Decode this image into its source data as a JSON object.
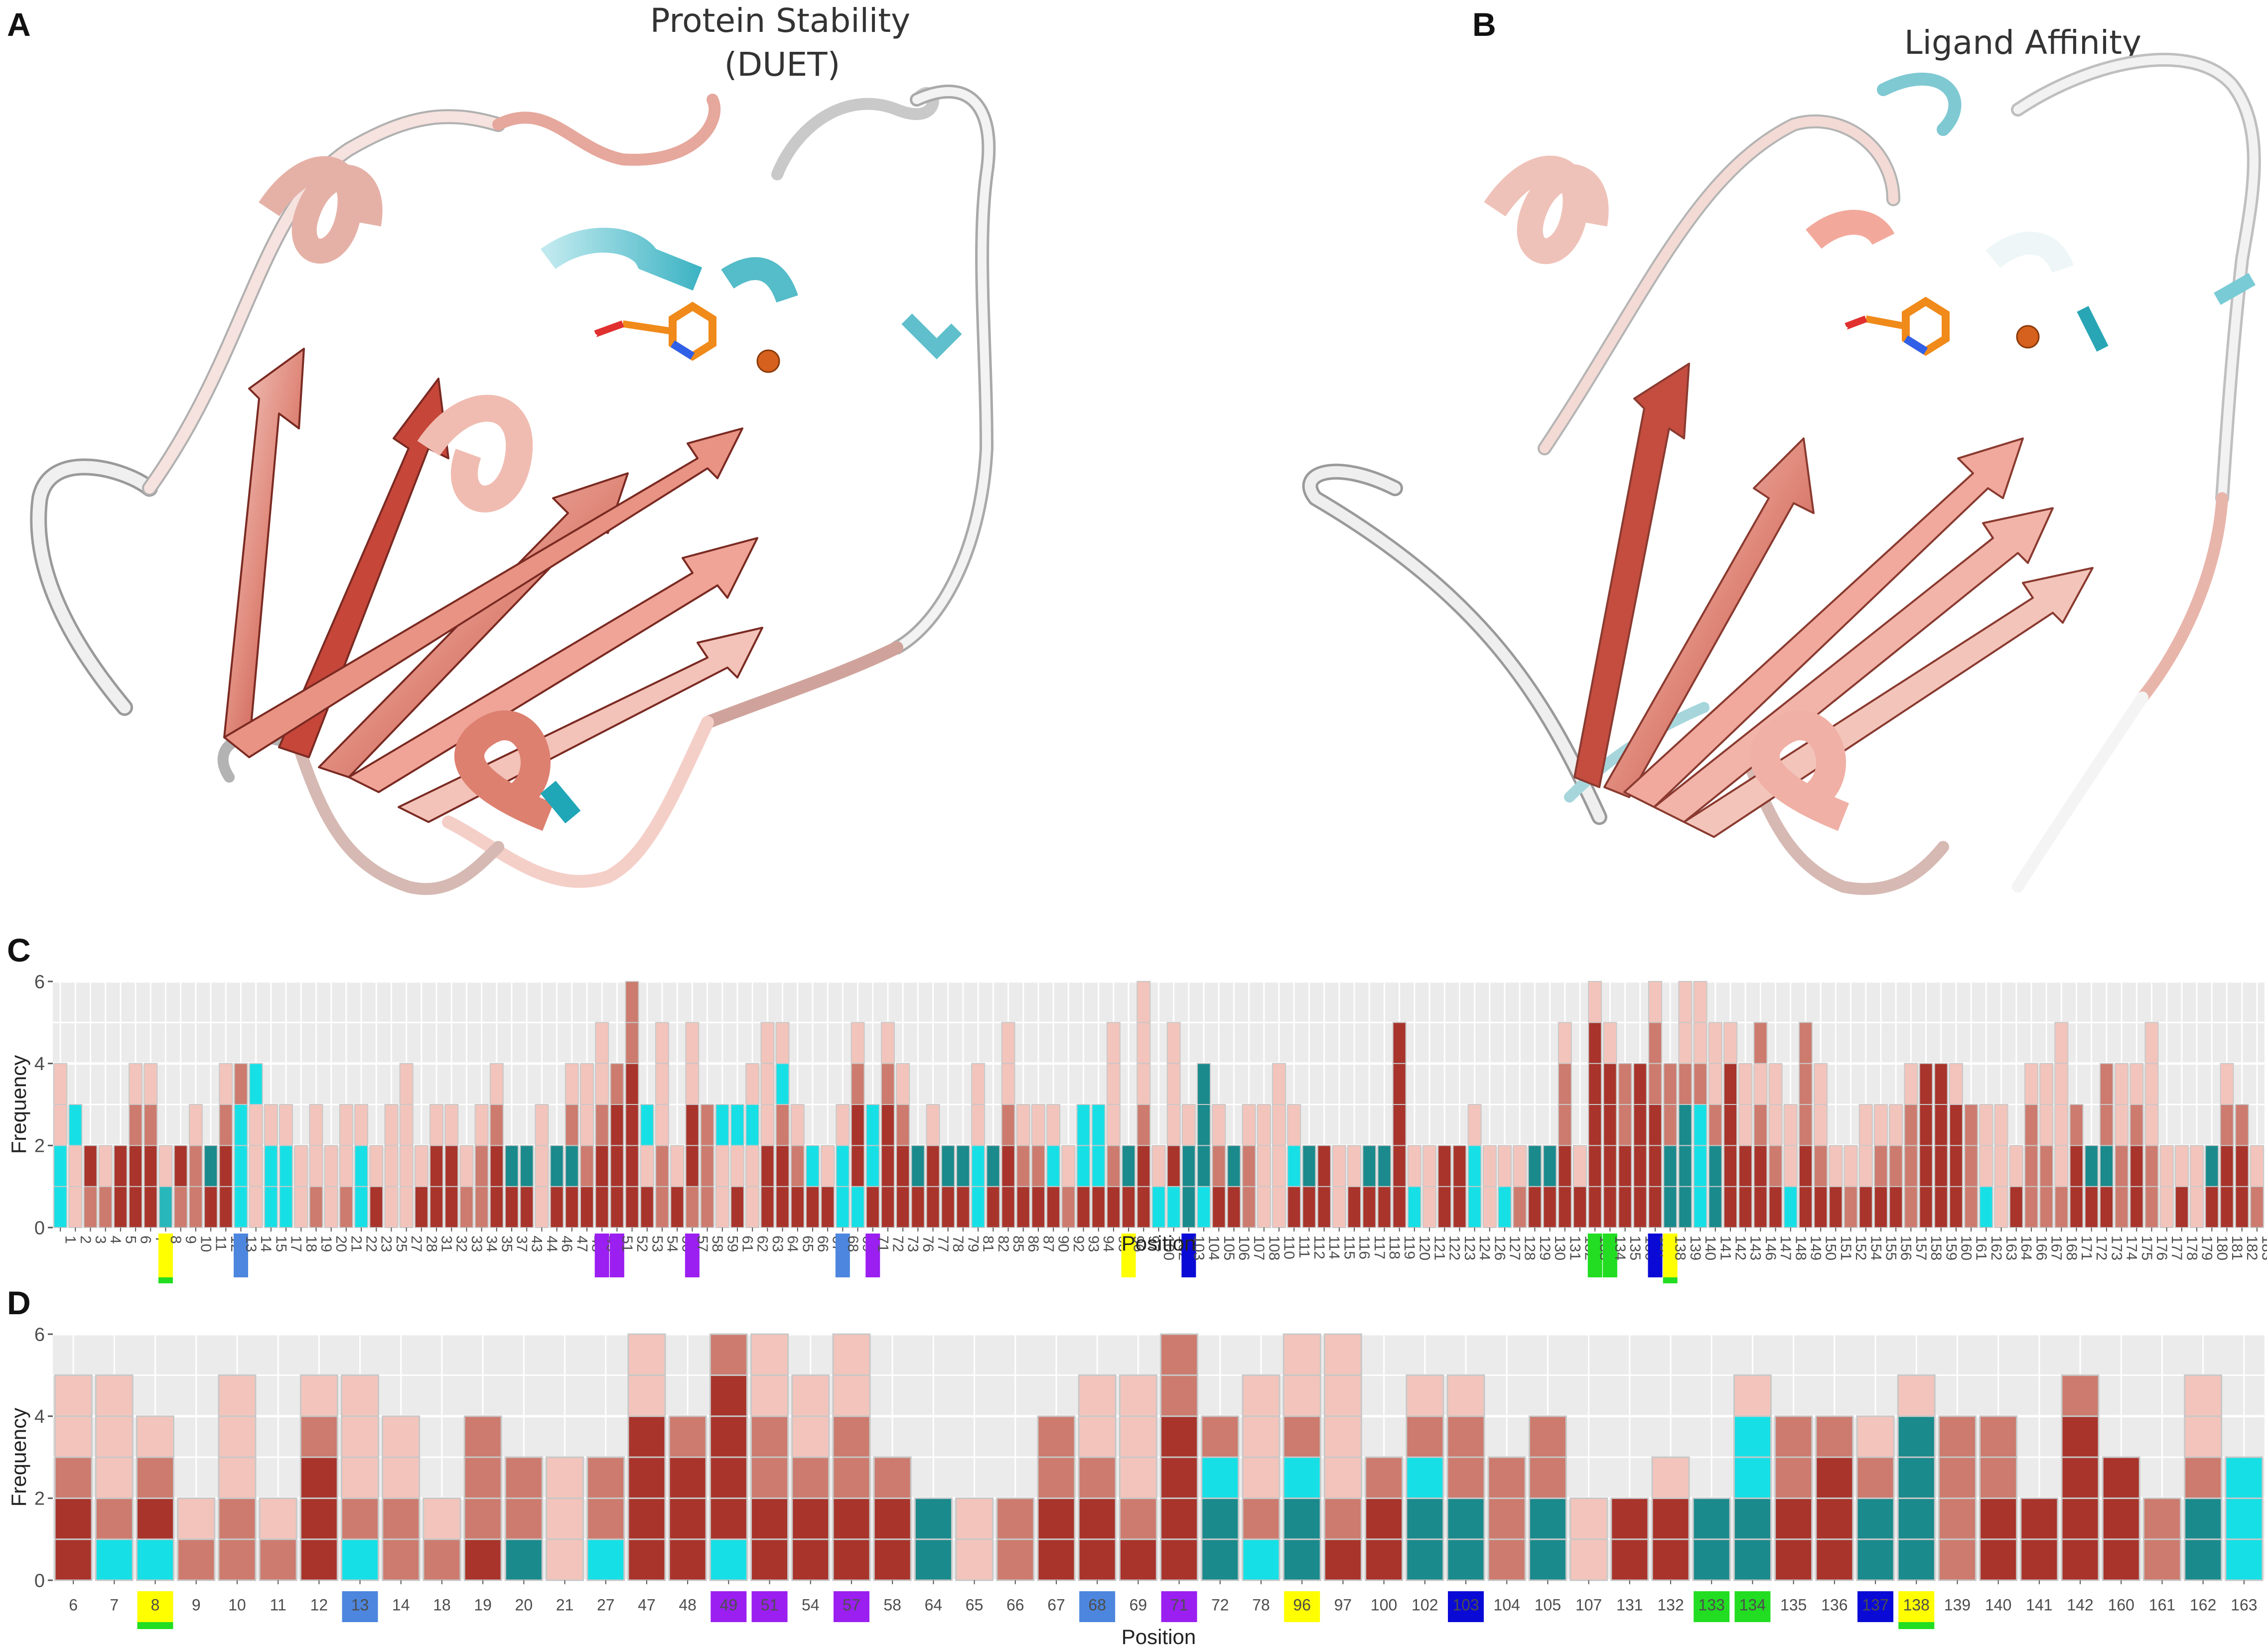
{
  "panel_labels": {
    "a": "A",
    "b": "B",
    "c": "C",
    "d": "D"
  },
  "titles": {
    "a_line1": "Protein Stability",
    "a_line2": "(DUET)",
    "b": "Ligand Affinity"
  },
  "colors": {
    "dark_red": "#a8342b",
    "mid_red": "#cc7b6e",
    "light_red": "#f3c4bb",
    "dark_teal": "#1a8a8c",
    "teal": "#28b7bb",
    "cyan": "#16e0e5",
    "panel_bg": "#ebebeb",
    "grid": "#ffffff",
    "hl_yellow": "#ffff00",
    "hl_blue": "#4d86de",
    "hl_purple": "#9b1ff0",
    "hl_navy": "#0a0ad6",
    "hl_green": "#22dd22"
  },
  "chart_data": [
    {
      "type": "bar",
      "panel": "C",
      "stacked": true,
      "xlabel": "Position",
      "ylabel": "Frequency",
      "ylim": [
        0,
        6
      ],
      "yticks": [
        0,
        2,
        4,
        6
      ],
      "grid": true,
      "categories": [
        "1",
        "2",
        "3",
        "4",
        "5",
        "6",
        "7",
        "8",
        "9",
        "10",
        "11",
        "12",
        "13",
        "14",
        "15",
        "17",
        "18",
        "19",
        "20",
        "21",
        "22",
        "23",
        "25",
        "27",
        "28",
        "31",
        "32",
        "33",
        "34",
        "35",
        "37",
        "43",
        "44",
        "46",
        "47",
        "48",
        "49",
        "51",
        "52",
        "53",
        "54",
        "56",
        "57",
        "58",
        "59",
        "61",
        "62",
        "63",
        "64",
        "65",
        "66",
        "67",
        "68",
        "69",
        "71",
        "72",
        "73",
        "76",
        "77",
        "78",
        "79",
        "81",
        "82",
        "85",
        "86",
        "87",
        "90",
        "92",
        "93",
        "94",
        "95",
        "96",
        "97",
        "100",
        "102",
        "103",
        "104",
        "105",
        "106",
        "107",
        "108",
        "110",
        "111",
        "112",
        "114",
        "115",
        "116",
        "117",
        "118",
        "119",
        "120",
        "121",
        "122",
        "123",
        "124",
        "126",
        "127",
        "128",
        "129",
        "130",
        "131",
        "132",
        "133",
        "134",
        "135",
        "136",
        "137",
        "138",
        "139",
        "140",
        "141",
        "142",
        "143",
        "146",
        "147",
        "148",
        "149",
        "150",
        "151",
        "152",
        "154",
        "155",
        "156",
        "157",
        "158",
        "159",
        "160",
        "161",
        "162",
        "163",
        "164",
        "166",
        "167",
        "168",
        "171",
        "172",
        "173",
        "174",
        "175",
        "176",
        "177",
        "178",
        "179",
        "180",
        "181",
        "182",
        "183"
      ],
      "stack_codes": [
        "CCLL",
        "LLC",
        "MD",
        "ML",
        "DD",
        "DDML",
        "DDML",
        "YL",
        "MD",
        "MML",
        "DT",
        "DDML",
        "CCCM",
        "LLLC",
        "CCL",
        "CCL",
        "LL",
        "MLL",
        "LL",
        "MLL",
        "CCL",
        "DL",
        "LLL",
        "LLLL",
        "DL",
        "DDL",
        "DDL",
        "ML",
        "MML",
        "DDML",
        "DT",
        "DT",
        "LLL",
        "DT",
        "DTML",
        "DMLL",
        "DDMLL",
        "DDDM",
        "DDDDMM",
        "DLC",
        "MMLLL",
        "DL",
        "MDDLL",
        "MMM",
        "LLC",
        "DLC",
        "LLCL",
        "DDLLL",
        "DDMCL",
        "DML",
        "DC",
        "DL",
        "CCL",
        "CDDML",
        "DCC",
        "DDDML",
        "DDML",
        "DT",
        "DDL",
        "DT",
        "DT",
        "CCLL",
        "DT",
        "DDMLL",
        "DML",
        "DML",
        "DCL",
        "ML",
        "DCC",
        "DCC",
        "DMLLL",
        "DT",
        "DDMLLL",
        "CL",
        "CDLLL",
        "TTL",
        "CTTT",
        "DML",
        "DT",
        "MML",
        "LLL",
        "LLLL",
        "DCL",
        "DT",
        "DD",
        "LL",
        "DL",
        "DT",
        "DT",
        "DDDDD",
        "CL",
        "LL",
        "DD",
        "DD",
        "CCL",
        "LL",
        "CL",
        "ML",
        "DT",
        "DT",
        "DDMML",
        "DL",
        "DDDDDL",
        "DDDDL",
        "DDMM",
        "DDDD",
        "DDDMML",
        "TTMM",
        "TTTMLL",
        "CCCMLL",
        "TTMLL",
        "DDDDL",
        "DDLL",
        "DDMLM",
        "DMLL",
        "CLL",
        "DDMMM",
        "DMLL",
        "DL",
        "ML",
        "DLL",
        "DML",
        "DML",
        "MMML",
        "DDDD",
        "DDDD",
        "DDDL",
        "MMM",
        "CLL",
        "LLL",
        "DL",
        "MMML",
        "MMLL",
        "MLLLL",
        "DDM",
        "DT",
        "DTMM",
        "MMLL",
        "DDML",
        "MMLLL",
        "LL",
        "DL",
        "LL",
        "DT",
        "DDML",
        "DDM",
        "ML"
      ],
      "highlights": [
        {
          "label": "8",
          "color": "yellow",
          "underline": "green"
        },
        {
          "label": "13",
          "color": "blue"
        },
        {
          "label": "49",
          "color": "purple"
        },
        {
          "label": "51",
          "color": "purple"
        },
        {
          "label": "57",
          "color": "purple"
        },
        {
          "label": "68",
          "color": "blue"
        },
        {
          "label": "71",
          "color": "purple"
        },
        {
          "label": "96",
          "color": "yellow"
        },
        {
          "label": "103",
          "color": "navy"
        },
        {
          "label": "133",
          "color": "green"
        },
        {
          "label": "134",
          "color": "green"
        },
        {
          "label": "137",
          "color": "navy"
        },
        {
          "label": "138",
          "color": "yellow",
          "underline": "green"
        }
      ]
    },
    {
      "type": "bar",
      "panel": "D",
      "stacked": true,
      "xlabel": "Position",
      "ylabel": "Frequency",
      "ylim": [
        0,
        6
      ],
      "yticks": [
        0,
        2,
        4,
        6
      ],
      "grid": true,
      "categories": [
        "6",
        "7",
        "8",
        "9",
        "10",
        "11",
        "12",
        "13",
        "14",
        "18",
        "19",
        "20",
        "21",
        "27",
        "47",
        "48",
        "49",
        "51",
        "54",
        "57",
        "58",
        "64",
        "65",
        "66",
        "67",
        "68",
        "69",
        "71",
        "72",
        "78",
        "96",
        "97",
        "100",
        "102",
        "103",
        "104",
        "105",
        "107",
        "131",
        "132",
        "133",
        "134",
        "135",
        "136",
        "137",
        "138",
        "139",
        "140",
        "141",
        "142",
        "160",
        "161",
        "162",
        "163"
      ],
      "stack_codes": [
        "DDMLL",
        "CMLLL",
        "CDML",
        "ML",
        "MMLLL",
        "ML",
        "DDDML",
        "CMLLL",
        "MMLL",
        "ML",
        "DMMM",
        "TMM",
        "LLL",
        "CMM",
        "DDDDLL",
        "DDDM",
        "CDDDDM",
        "DDMMLL",
        "DDMLL",
        "DDMMLL",
        "DDM",
        "TT",
        "LL",
        "MM",
        "DDMM",
        "DDMLL",
        "DMLLL",
        "DDDDMM",
        "TTCM",
        "CMLLL",
        "TTCMLL",
        "DMLLLL",
        "DDM",
        "TTCML",
        "TTMML",
        "MMM",
        "TTMM",
        "LL",
        "DD",
        "DDL",
        "TT",
        "TTCCL",
        "DDMM",
        "DDDM",
        "TTML",
        "TTTTL",
        "MMMM",
        "DDMM",
        "DD",
        "DDDDM",
        "DDD",
        "MM",
        "TTMLL",
        "CCC"
      ],
      "highlights": [
        {
          "label": "8",
          "color": "yellow",
          "underline": "green"
        },
        {
          "label": "13",
          "color": "blue"
        },
        {
          "label": "49",
          "color": "purple"
        },
        {
          "label": "51",
          "color": "purple"
        },
        {
          "label": "57",
          "color": "purple"
        },
        {
          "label": "68",
          "color": "blue"
        },
        {
          "label": "71",
          "color": "purple"
        },
        {
          "label": "96",
          "color": "yellow"
        },
        {
          "label": "103",
          "color": "navy"
        },
        {
          "label": "133",
          "color": "green"
        },
        {
          "label": "134",
          "color": "green"
        },
        {
          "label": "137",
          "color": "navy"
        },
        {
          "label": "138",
          "color": "yellow",
          "underline": "green"
        }
      ]
    }
  ]
}
